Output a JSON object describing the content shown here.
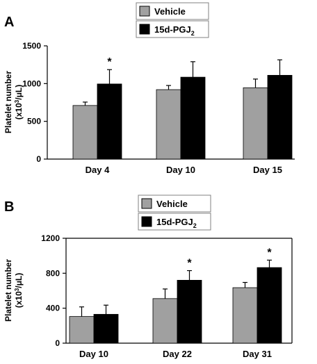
{
  "figure": {
    "legend": {
      "vehicle_label": "Vehicle",
      "pgj_label": "15d-PGJ",
      "pgj_subscript": "2"
    },
    "colors": {
      "vehicle": "#a0a0a0",
      "pgj": "#000000",
      "axis": "#000000",
      "frame": "#808080"
    },
    "ylabel_line1": "Platelet number",
    "ylabel_line2_prefix": "(x10",
    "ylabel_line2_sup": "3",
    "ylabel_line2_suffix": "/μL)"
  },
  "chart_data": [
    {
      "type": "bar",
      "panel_label": "A",
      "categories": [
        "Day 4",
        "Day 10",
        "Day 15"
      ],
      "series": [
        {
          "name": "Vehicle",
          "values": [
            710,
            920,
            945
          ],
          "errors": [
            45,
            55,
            115
          ]
        },
        {
          "name": "15d-PGJ2",
          "values": [
            995,
            1085,
            1110
          ],
          "errors": [
            190,
            205,
            205
          ]
        }
      ],
      "significance": [
        [
          "",
          "*"
        ],
        [
          "",
          ""
        ],
        [
          "",
          ""
        ]
      ],
      "ylim": [
        0,
        1500
      ],
      "yticks": [
        0,
        500,
        1000,
        1500
      ],
      "ylabel": "Platelet number (x10³/μL)",
      "grid": false,
      "legend_position": "top-center"
    },
    {
      "type": "bar",
      "panel_label": "B",
      "categories": [
        "Day 10",
        "Day 22",
        "Day 31"
      ],
      "series": [
        {
          "name": "Vehicle",
          "values": [
            305,
            510,
            635
          ],
          "errors": [
            110,
            110,
            60
          ]
        },
        {
          "name": "15d-PGJ2",
          "values": [
            330,
            720,
            865
          ],
          "errors": [
            105,
            110,
            85
          ]
        }
      ],
      "significance": [
        [
          "",
          ""
        ],
        [
          "",
          "*"
        ],
        [
          "",
          "*"
        ]
      ],
      "ylim": [
        0,
        1200
      ],
      "yticks": [
        0,
        400,
        800,
        1200
      ],
      "ylabel": "Platelet number (x10³/μL)",
      "grid": false,
      "legend_position": "top-center"
    }
  ]
}
